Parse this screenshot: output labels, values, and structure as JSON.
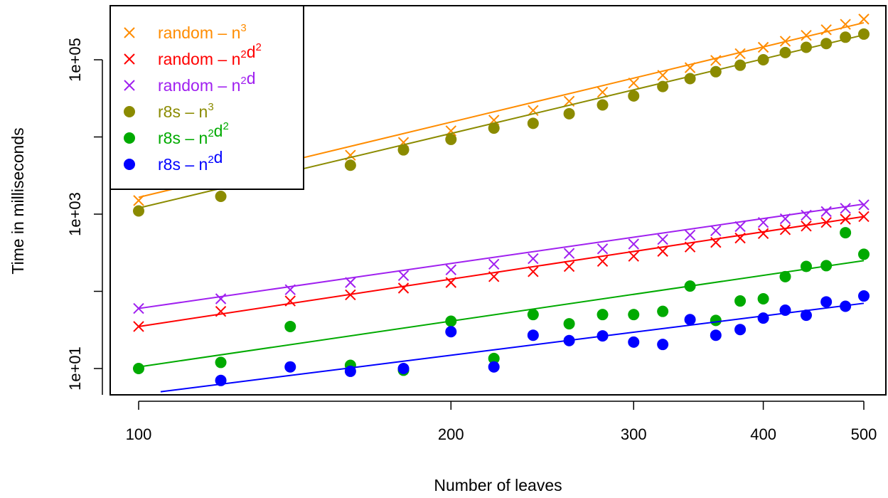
{
  "chart_data": {
    "type": "scatter",
    "x_scale": "log",
    "y_scale": "log",
    "xlabel": "Number of leaves",
    "ylabel": "Time in milliseconds",
    "xlim": [
      100,
      500
    ],
    "ylim": [
      5,
      200000
    ],
    "x_ticks": [
      100,
      200,
      300,
      400,
      500
    ],
    "x_tick_labels": [
      "100",
      "200",
      "300",
      "400",
      "500"
    ],
    "y_ticks": [
      10,
      100,
      1000,
      10000,
      100000
    ],
    "y_tick_labels": [
      "1e+01",
      "",
      "1e+03",
      "",
      "1e+05"
    ],
    "legend_position": "top-left",
    "x": [
      100,
      120,
      140,
      160,
      180,
      200,
      220,
      240,
      260,
      280,
      300,
      320,
      340,
      360,
      380,
      400,
      420,
      440,
      460,
      480,
      500
    ],
    "series": [
      {
        "name": "random – n^3",
        "legend_base": "random",
        "legend_parts": [
          [
            "n",
            "3"
          ]
        ],
        "color": "#ff8c00",
        "marker": "cross",
        "values": [
          1500,
          2400,
          3800,
          5800,
          8500,
          12000,
          16500,
          22000,
          29000,
          38000,
          50000,
          63000,
          79000,
          98000,
          120000,
          145000,
          174000,
          207000,
          245000,
          288000,
          336000
        ],
        "fit": [
          [
            100,
            1650
          ],
          [
            500,
            302000
          ]
        ]
      },
      {
        "name": "random – n^2d^2",
        "legend_base": "random",
        "legend_parts": [
          [
            "n",
            "2"
          ],
          [
            "d",
            "2"
          ]
        ],
        "color": "#ff0000",
        "marker": "cross",
        "values": [
          35,
          55,
          75,
          90,
          110,
          130,
          155,
          180,
          210,
          245,
          285,
          330,
          375,
          430,
          490,
          560,
          630,
          700,
          780,
          860,
          930
        ],
        "fit": [
          [
            100,
            35
          ],
          [
            500,
            930
          ]
        ]
      },
      {
        "name": "random – n^2d",
        "legend_base": "random",
        "legend_parts": [
          [
            "n",
            "2"
          ],
          [
            "d",
            ""
          ]
        ],
        "color": "#a020f0",
        "marker": "cross",
        "values": [
          60,
          80,
          105,
          130,
          160,
          190,
          225,
          265,
          310,
          355,
          410,
          470,
          535,
          610,
          690,
          780,
          870,
          970,
          1080,
          1190,
          1320
        ],
        "fit": [
          [
            100,
            60
          ],
          [
            500,
            1350
          ]
        ]
      },
      {
        "name": "r8s – n^3",
        "legend_base": "r8s",
        "legend_parts": [
          [
            "n",
            "3"
          ]
        ],
        "color": "#8b8b00",
        "marker": "dot",
        "values": [
          1100,
          1700,
          2800,
          4300,
          6800,
          9300,
          13000,
          15000,
          20000,
          26000,
          34000,
          45000,
          57000,
          70000,
          85000,
          100000,
          124000,
          145000,
          162000,
          196000,
          215000
        ],
        "fit": [
          [
            100,
            1200
          ],
          [
            500,
            210000
          ]
        ]
      },
      {
        "name": "r8s – n^2d^2",
        "legend_base": "r8s",
        "legend_parts": [
          [
            "n",
            "2"
          ],
          [
            "d",
            "2"
          ]
        ],
        "color": "#00aa00",
        "marker": "dot",
        "values": [
          10,
          12,
          35,
          11,
          9.5,
          41,
          13.5,
          50,
          38,
          50,
          50,
          55,
          117,
          42,
          75,
          80,
          155,
          210,
          215,
          575,
          302
        ],
        "fit": [
          [
            100,
            10.5
          ],
          [
            500,
            250
          ]
        ]
      },
      {
        "name": "r8s – n^2d",
        "legend_base": "r8s",
        "legend_parts": [
          [
            "n",
            "2"
          ],
          [
            "d",
            ""
          ]
        ],
        "color": "#0000ff",
        "marker": "dot",
        "values": [
          null,
          7,
          10.5,
          9.2,
          10,
          30,
          10.5,
          27,
          23,
          26.5,
          22,
          20.5,
          43,
          27,
          32,
          45,
          57,
          49,
          73,
          64,
          87
        ],
        "fit": [
          [
            105,
            5
          ],
          [
            500,
            70
          ]
        ]
      }
    ]
  }
}
